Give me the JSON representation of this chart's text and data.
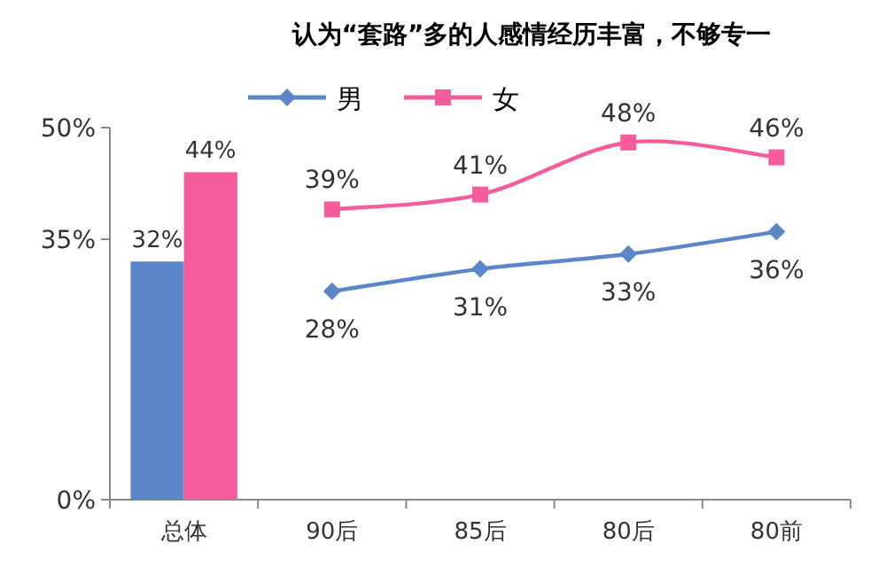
{
  "chart_data": {
    "type": "bar",
    "title": "认为“套路”多的人感情经历丰富，不够专一",
    "categories": [
      "总体",
      "90后",
      "85后",
      "80后",
      "80前"
    ],
    "ylim": [
      0,
      50
    ],
    "yticks": [
      {
        "value": 0,
        "label": "0%"
      },
      {
        "value": 35,
        "label": "35%"
      },
      {
        "value": 50,
        "label": "50%"
      }
    ],
    "legend": "top",
    "grid": false,
    "series": [
      {
        "color": "#5b87c8",
        "values": [
          32,
          null,
          null,
          null,
          null
        ],
        "value_labels": [
          "32%",
          null,
          null,
          null,
          null
        ]
      },
      {
        "color": "#f45c9c",
        "values": [
          44,
          null,
          null,
          null,
          null
        ],
        "value_labels": [
          "44%",
          null,
          null,
          null,
          null
        ]
      },
      {
        "type": "line",
        "name": "男",
        "color": "#5b87c8",
        "marker": "diamond",
        "values": [
          null,
          28,
          31,
          33,
          36
        ],
        "value_labels": [
          null,
          "28%",
          "31%",
          "33%",
          "36%"
        ]
      },
      {
        "type": "line",
        "name": "女",
        "color": "#f45c9c",
        "marker": "square",
        "values": [
          null,
          39,
          41,
          48,
          46
        ],
        "value_labels": [
          null,
          "39%",
          "41%",
          "48%",
          "46%"
        ]
      }
    ]
  }
}
